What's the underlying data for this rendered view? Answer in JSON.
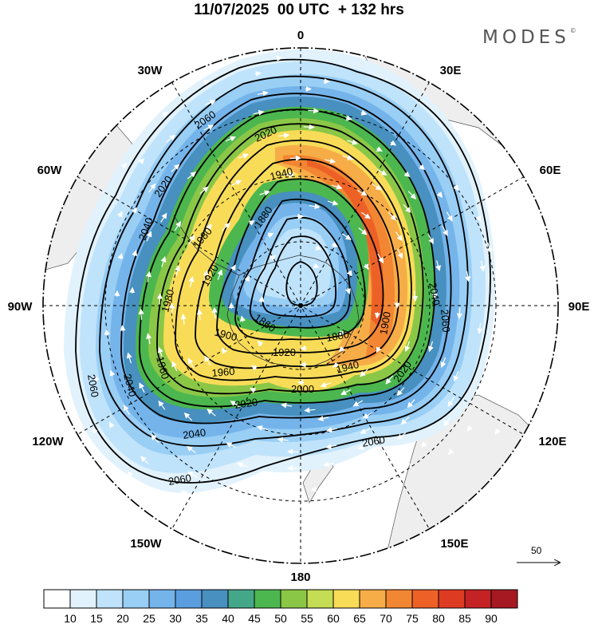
{
  "header": {
    "title": "11/07/2025  00 UTC  + 132 hrs",
    "brand": "MODES",
    "brand_mark": "©"
  },
  "map": {
    "projection": "south-polar-stereographic",
    "longitude_labels": [
      {
        "text": "0",
        "lon": 0
      },
      {
        "text": "30E",
        "lon": 30
      },
      {
        "text": "60E",
        "lon": 60
      },
      {
        "text": "90E",
        "lon": 90
      },
      {
        "text": "120E",
        "lon": 120
      },
      {
        "text": "150E",
        "lon": 150
      },
      {
        "text": "180",
        "lon": 180
      },
      {
        "text": "150W",
        "lon": -150
      },
      {
        "text": "120W",
        "lon": -120
      },
      {
        "text": "90W",
        "lon": -90
      },
      {
        "text": "60W",
        "lon": -60
      },
      {
        "text": "30W",
        "lon": -30
      }
    ],
    "colors": {
      "land": "#eeeeee",
      "contour": "#000000",
      "graticule": "#000000",
      "vectors": "#ffffff"
    },
    "contours": [
      {
        "value": "2060",
        "labels": [
          "2060",
          "2060",
          "2060",
          "2060",
          "2060"
        ]
      },
      {
        "value": "2040",
        "labels": [
          "2040",
          "2040",
          "2040",
          "2040"
        ]
      },
      {
        "value": "2020",
        "labels": [
          "2020",
          "2020",
          "2020",
          "2020"
        ]
      },
      {
        "value": "2000",
        "labels": [
          "2000"
        ]
      },
      {
        "value": "1980",
        "labels": [
          "1980",
          "1980"
        ]
      },
      {
        "value": "1960",
        "labels": [
          "1960",
          "1960"
        ]
      },
      {
        "value": "1940",
        "labels": [
          "1940",
          "1940"
        ]
      },
      {
        "value": "1920",
        "labels": [
          "1920",
          "1920"
        ]
      },
      {
        "value": "1900",
        "labels": [
          "1900",
          "1900"
        ]
      },
      {
        "value": "1880",
        "labels": [
          "1880"
        ]
      },
      {
        "value": "1860",
        "labels": [
          "1860"
        ]
      },
      {
        "value": "1880-inner",
        "labels": [
          "1880"
        ]
      }
    ]
  },
  "reference_vector": {
    "label": "50"
  },
  "colorbar": {
    "levels": [
      10,
      15,
      20,
      25,
      30,
      35,
      40,
      45,
      50,
      55,
      60,
      65,
      70,
      75,
      80,
      85,
      90
    ],
    "labels": [
      "10",
      "15",
      "20",
      "25",
      "30",
      "35",
      "40",
      "45",
      "50",
      "55",
      "60",
      "65",
      "70",
      "75",
      "80",
      "85",
      "90"
    ],
    "colors": [
      "#ffffff",
      "#e1f2fd",
      "#bfe3fb",
      "#99cef5",
      "#74b4ea",
      "#5a9ee0",
      "#4790bf",
      "#45a78a",
      "#4cb74e",
      "#8bc747",
      "#c5dc55",
      "#f8dc58",
      "#f7ad47",
      "#f38632",
      "#ed6127",
      "#de3b23",
      "#c42225",
      "#a61922"
    ]
  }
}
